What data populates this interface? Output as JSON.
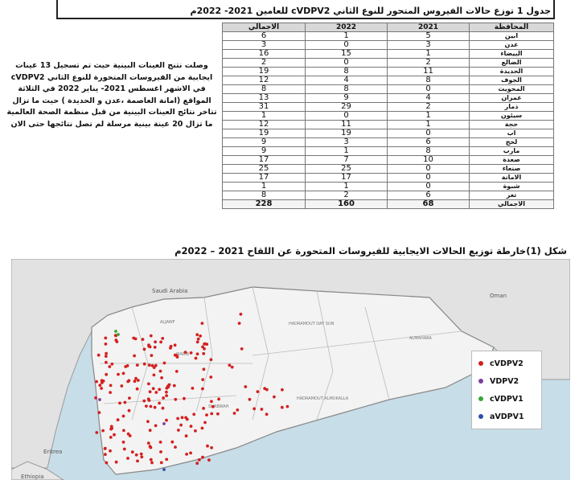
{
  "table": {
    "caption": "جدول 1 توزع حالات الفيروس المتحور للنوع الثاني cVDPV2 للعامين 2021- 2022م",
    "headers": [
      "المحافظة",
      "2021",
      "2022",
      "الاجمالي"
    ],
    "rows": [
      {
        "gov": "ابين",
        "y2021": "5",
        "y2022": "1",
        "total": "6"
      },
      {
        "gov": "عدن",
        "y2021": "3",
        "y2022": "0",
        "total": "3"
      },
      {
        "gov": "البيضاء",
        "y2021": "1",
        "y2022": "15",
        "total": "16"
      },
      {
        "gov": "الضالع",
        "y2021": "2",
        "y2022": "0",
        "total": "2"
      },
      {
        "gov": "الحديدة",
        "y2021": "11",
        "y2022": "8",
        "total": "19"
      },
      {
        "gov": "الجوف",
        "y2021": "8",
        "y2022": "4",
        "total": "12"
      },
      {
        "gov": "المحويت",
        "y2021": "0",
        "y2022": "8",
        "total": "8"
      },
      {
        "gov": "عمران",
        "y2021": "4",
        "y2022": "9",
        "total": "13"
      },
      {
        "gov": "ذمار",
        "y2021": "2",
        "y2022": "29",
        "total": "31"
      },
      {
        "gov": "سيئون",
        "y2021": "1",
        "y2022": "0",
        "total": "1"
      },
      {
        "gov": "حجة",
        "y2021": "1",
        "y2022": "11",
        "total": "12"
      },
      {
        "gov": "اب",
        "y2021": "0",
        "y2022": "19",
        "total": "19"
      },
      {
        "gov": "لحج",
        "y2021": "6",
        "y2022": "3",
        "total": "9"
      },
      {
        "gov": "مارب",
        "y2021": "8",
        "y2022": "1",
        "total": "9"
      },
      {
        "gov": "صعدة",
        "y2021": "10",
        "y2022": "7",
        "total": "17"
      },
      {
        "gov": "صنعاء",
        "y2021": "0",
        "y2022": "25",
        "total": "25"
      },
      {
        "gov": "الامانة",
        "y2021": "0",
        "y2022": "17",
        "total": "17"
      },
      {
        "gov": "شبوة",
        "y2021": "0",
        "y2022": "1",
        "total": "1"
      },
      {
        "gov": "تعز",
        "y2021": "6",
        "y2022": "2",
        "total": "8"
      }
    ],
    "total": {
      "gov": "الاجمالي",
      "y2021": "68",
      "y2022": "160",
      "total": "228"
    }
  },
  "note": "وصلت نتنج العينات البينية حيث تم تسجيل 13 عينات ايجابية من الفيروسات المتحورة للنوع الثاني cVDPV2 في الاشهر اغسطس 2021- يناير 2022 في الثلاثة المواقع (امانة العاصمة ،عدن و الحديدة ) حيث ما تزال تتاخر نتائج العينات البينية من قبل منظمة الصحة العالمية ما تزال 20 عينة بينية مرسلة لم تصل نتائجها حتى الان",
  "figure": {
    "title": "شكل (1)خارطة توزيع الحالات الايجابية للفيروسات المتحورة عن اللقاح 2021 – 2022م",
    "labels": {
      "saudi": "Saudi Arabia",
      "oman": "Oman",
      "eritrea": "Eritrea",
      "ethiopia": "Ethiopia"
    },
    "legend": [
      {
        "label": "cVDPV2",
        "color": "#d42020"
      },
      {
        "label": "VDPV2",
        "color": "#7b3fa0"
      },
      {
        "label": "cVDPV1",
        "color": "#3aa635"
      },
      {
        "label": "aVDPV1",
        "color": "#2c4fa8"
      }
    ]
  }
}
